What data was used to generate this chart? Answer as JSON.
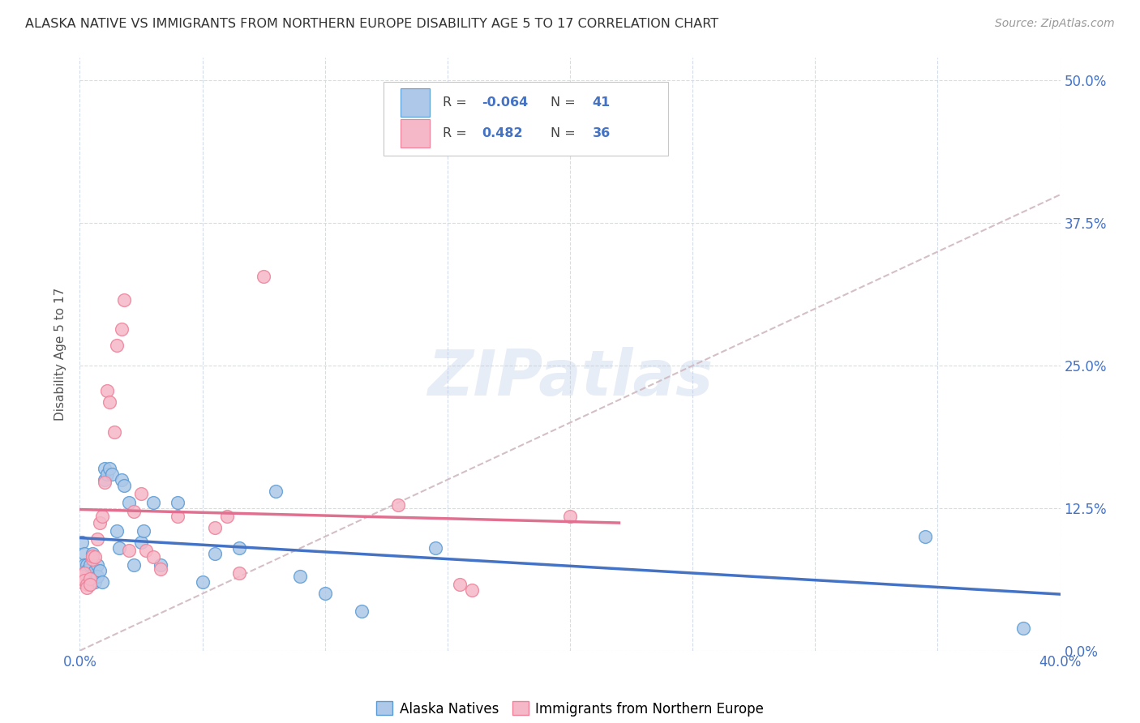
{
  "title": "ALASKA NATIVE VS IMMIGRANTS FROM NORTHERN EUROPE DISABILITY AGE 5 TO 17 CORRELATION CHART",
  "source": "Source: ZipAtlas.com",
  "ylabel_label": "Disability Age 5 to 17",
  "xlim": [
    0.0,
    0.4
  ],
  "ylim": [
    0.0,
    0.52
  ],
  "yticks": [
    0.0,
    0.125,
    0.25,
    0.375,
    0.5
  ],
  "ytick_labels": [
    "0.0%",
    "12.5%",
    "25.0%",
    "37.5%",
    "50.0%"
  ],
  "xticks": [
    0.0,
    0.05,
    0.1,
    0.15,
    0.2,
    0.25,
    0.3,
    0.35,
    0.4
  ],
  "alaska_R": -0.064,
  "alaska_N": 41,
  "immigrant_R": 0.482,
  "immigrant_N": 36,
  "alaska_color": "#adc8e8",
  "immigrant_color": "#f5b8c8",
  "alaska_edge_color": "#5b9bd5",
  "immigrant_edge_color": "#f08098",
  "alaska_line_color": "#4472c4",
  "immigrant_line_color": "#e07090",
  "diagonal_color": "#d0b8c0",
  "watermark": "ZIPatlas",
  "alaska_points_x": [
    0.001,
    0.002,
    0.002,
    0.003,
    0.003,
    0.004,
    0.004,
    0.005,
    0.005,
    0.006,
    0.006,
    0.007,
    0.007,
    0.008,
    0.009,
    0.01,
    0.01,
    0.011,
    0.012,
    0.013,
    0.015,
    0.016,
    0.017,
    0.018,
    0.02,
    0.022,
    0.025,
    0.026,
    0.03,
    0.033,
    0.04,
    0.05,
    0.055,
    0.065,
    0.08,
    0.09,
    0.1,
    0.115,
    0.145,
    0.345,
    0.385
  ],
  "alaska_points_y": [
    0.095,
    0.085,
    0.075,
    0.075,
    0.07,
    0.075,
    0.065,
    0.085,
    0.065,
    0.07,
    0.06,
    0.075,
    0.065,
    0.07,
    0.06,
    0.15,
    0.16,
    0.155,
    0.16,
    0.155,
    0.105,
    0.09,
    0.15,
    0.145,
    0.13,
    0.075,
    0.095,
    0.105,
    0.13,
    0.075,
    0.13,
    0.06,
    0.085,
    0.09,
    0.14,
    0.065,
    0.05,
    0.035,
    0.09,
    0.1,
    0.02
  ],
  "immigrant_points_x": [
    0.001,
    0.001,
    0.002,
    0.002,
    0.003,
    0.003,
    0.004,
    0.004,
    0.005,
    0.005,
    0.006,
    0.007,
    0.008,
    0.009,
    0.01,
    0.011,
    0.012,
    0.014,
    0.015,
    0.017,
    0.018,
    0.02,
    0.022,
    0.025,
    0.027,
    0.03,
    0.033,
    0.04,
    0.055,
    0.06,
    0.065,
    0.075,
    0.13,
    0.155,
    0.16,
    0.2
  ],
  "immigrant_points_y": [
    0.06,
    0.065,
    0.068,
    0.062,
    0.058,
    0.055,
    0.063,
    0.058,
    0.08,
    0.083,
    0.082,
    0.098,
    0.112,
    0.118,
    0.148,
    0.228,
    0.218,
    0.192,
    0.268,
    0.282,
    0.308,
    0.088,
    0.122,
    0.138,
    0.088,
    0.082,
    0.072,
    0.118,
    0.108,
    0.118,
    0.068,
    0.328,
    0.128,
    0.058,
    0.053,
    0.118
  ]
}
